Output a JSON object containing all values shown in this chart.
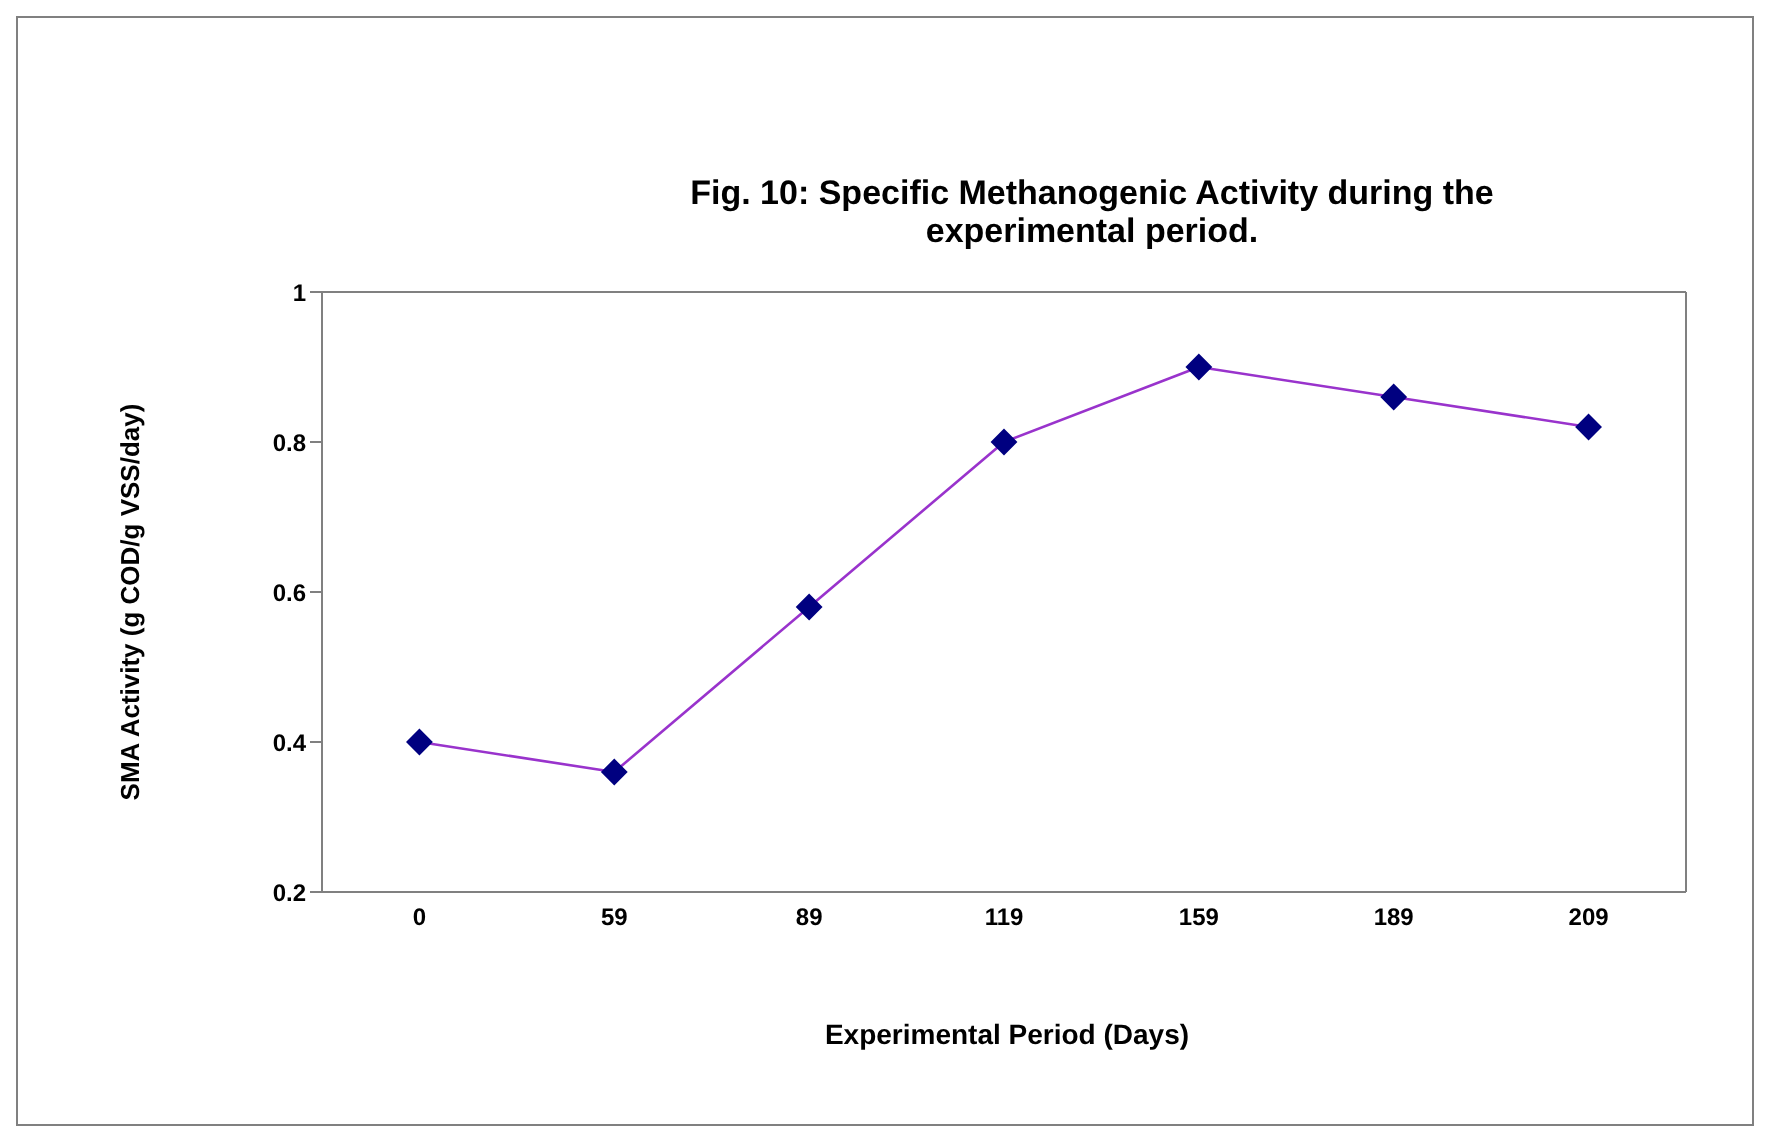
{
  "chart_data": {
    "type": "line",
    "title": "Fig. 10: Specific Methanogenic Activity during the\nexperimental period.",
    "xlabel": "Experimental Period (Days)",
    "ylabel": "SMA Activity (g COD/g VSS/day)",
    "categories": [
      "0",
      "59",
      "89",
      "119",
      "159",
      "189",
      "209"
    ],
    "series": [
      {
        "color": "#9933cc",
        "values": [
          0.4,
          0.36,
          0.58,
          0.8,
          0.9,
          0.86,
          0.82
        ]
      }
    ],
    "ylim": [
      0.2,
      1
    ],
    "yticks": [
      0.2,
      0.4,
      0.6,
      0.8,
      1
    ],
    "marker": "diamond",
    "line_style": "solid"
  }
}
